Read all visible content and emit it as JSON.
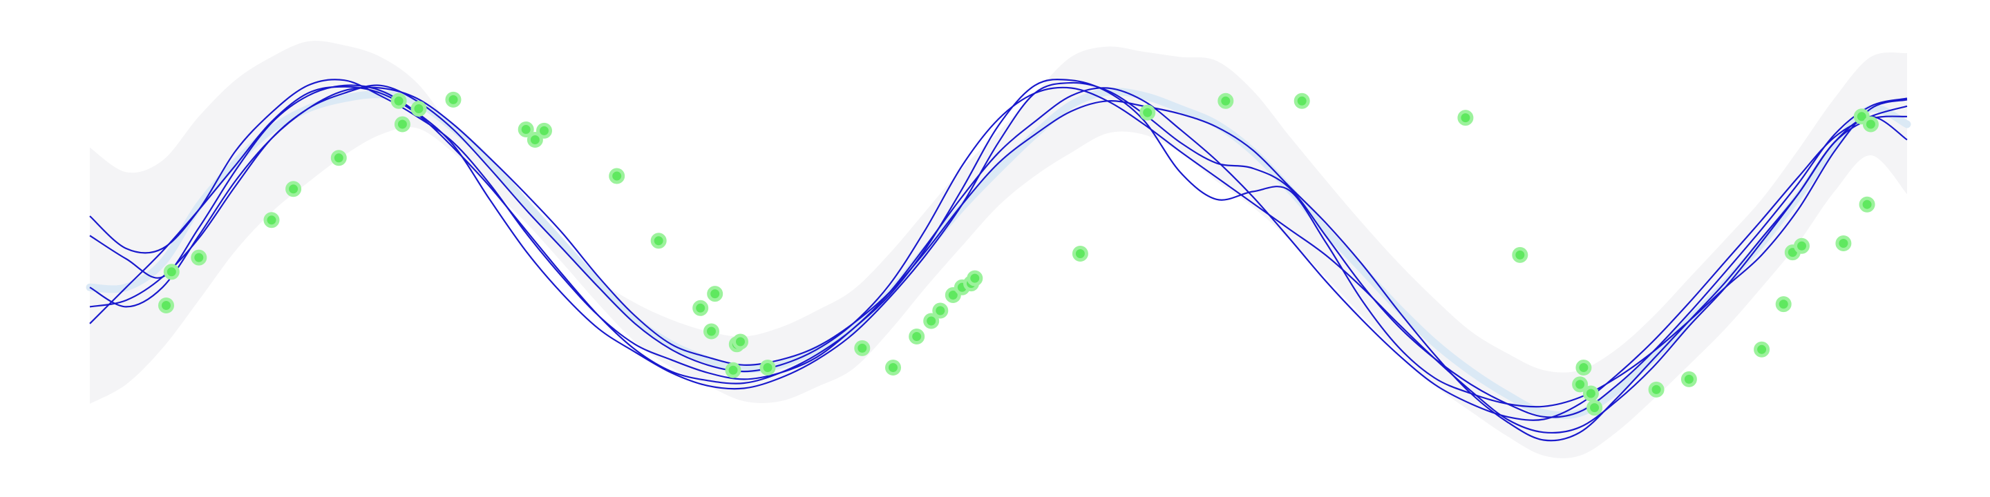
{
  "chart_data": {
    "type": "line",
    "title": "",
    "xlabel": "",
    "ylabel": "",
    "xlim": [
      0,
      1
    ],
    "ylim": [
      -1.6,
      1.6
    ],
    "grid": false,
    "legend": "none",
    "axes_visible": false,
    "colors": {
      "band": "#f4f4f6",
      "mean": "#dbe9f5",
      "samples": "#1919cc",
      "points": "#5fe85f",
      "points_edge": "#9cf29c"
    },
    "x": [
      0,
      0.02,
      0.04,
      0.06,
      0.08,
      0.1,
      0.12,
      0.14,
      0.16,
      0.18,
      0.2,
      0.22,
      0.24,
      0.26,
      0.28,
      0.3,
      0.32,
      0.34,
      0.36,
      0.38,
      0.4,
      0.42,
      0.44,
      0.46,
      0.48,
      0.5,
      0.52,
      0.54,
      0.56,
      0.58,
      0.6,
      0.62,
      0.64,
      0.66,
      0.68,
      0.7,
      0.72,
      0.74,
      0.76,
      0.78,
      0.8,
      0.82,
      0.84,
      0.86,
      0.88,
      0.9,
      0.92,
      0.94,
      0.96,
      0.98,
      1.0
    ],
    "band": {
      "upper": [
        0.78,
        0.59,
        0.68,
        1.02,
        1.3,
        1.48,
        1.6,
        1.57,
        1.48,
        1.28,
        0.92,
        0.63,
        0.35,
        0.04,
        -0.24,
        -0.42,
        -0.55,
        -0.64,
        -0.68,
        -0.61,
        -0.48,
        -0.32,
        -0.04,
        0.29,
        0.62,
        0.9,
        1.2,
        1.48,
        1.56,
        1.52,
        1.48,
        1.45,
        1.22,
        0.87,
        0.53,
        0.2,
        -0.11,
        -0.39,
        -0.64,
        -0.81,
        -0.94,
        -0.94,
        -0.78,
        -0.53,
        -0.23,
        0.07,
        0.38,
        0.76,
        1.16,
        1.48,
        1.51
      ],
      "lower": [
        -1.2,
        -1.05,
        -0.77,
        -0.4,
        -0.02,
        0.28,
        0.51,
        0.72,
        0.88,
        0.93,
        0.74,
        0.47,
        0.2,
        -0.11,
        -0.43,
        -0.72,
        -0.92,
        -1.06,
        -1.18,
        -1.18,
        -1.07,
        -0.93,
        -0.64,
        -0.3,
        0.02,
        0.33,
        0.56,
        0.74,
        0.89,
        0.88,
        0.74,
        0.52,
        0.32,
        0.07,
        -0.22,
        -0.52,
        -0.8,
        -1.06,
        -1.26,
        -1.45,
        -1.6,
        -1.6,
        -1.42,
        -1.17,
        -0.9,
        -0.62,
        -0.3,
        0.04,
        0.44,
        0.72,
        0.42
      ]
    },
    "mean": [
      -0.3,
      -0.3,
      -0.11,
      0.33,
      0.66,
      0.92,
      1.08,
      1.16,
      1.19,
      1.13,
      0.93,
      0.67,
      0.35,
      0.04,
      -0.27,
      -0.55,
      -0.74,
      -0.86,
      -0.93,
      -0.9,
      -0.78,
      -0.62,
      -0.35,
      -0.01,
      0.32,
      0.61,
      0.88,
      1.11,
      1.21,
      1.18,
      1.08,
      0.96,
      0.75,
      0.46,
      0.14,
      -0.16,
      -0.46,
      -0.73,
      -0.95,
      -1.13,
      -1.27,
      -1.27,
      -1.1,
      -0.85,
      -0.56,
      -0.27,
      0.04,
      0.4,
      0.79,
      1.08,
      0.96
    ],
    "series": [
      {
        "values": [
          0.25,
          0.0,
          0.0,
          0.3,
          0.75,
          1.05,
          1.26,
          1.3,
          1.18,
          1.02,
          0.82,
          0.5,
          0.12,
          -0.22,
          -0.52,
          -0.74,
          -0.86,
          -0.96,
          -1.01,
          -0.96,
          -0.84,
          -0.62,
          -0.36,
          0.0,
          0.46,
          0.95,
          1.26,
          1.3,
          1.21,
          0.99,
          0.59,
          0.38,
          0.44,
          0.45,
          0.05,
          -0.4,
          -0.76,
          -1.0,
          -1.12,
          -1.2,
          -1.22,
          -1.15,
          -1.0,
          -0.8,
          -0.56,
          -0.3,
          -0.05,
          0.3,
          0.75,
          1.08,
          1.15
        ]
      },
      {
        "values": [
          0.1,
          -0.08,
          -0.22,
          0.16,
          0.6,
          0.97,
          1.18,
          1.26,
          1.22,
          1.05,
          0.8,
          0.38,
          -0.02,
          -0.35,
          -0.62,
          -0.8,
          -0.96,
          -1.06,
          -1.08,
          -1.0,
          -0.86,
          -0.66,
          -0.38,
          -0.05,
          0.34,
          0.82,
          1.2,
          1.28,
          1.22,
          1.04,
          0.82,
          0.66,
          0.62,
          0.47,
          0.1,
          -0.28,
          -0.6,
          -0.85,
          -1.05,
          -1.2,
          -1.3,
          -1.26,
          -1.06,
          -0.8,
          -0.5,
          -0.18,
          0.15,
          0.5,
          0.88,
          1.1,
          1.16
        ]
      },
      {
        "values": [
          -0.45,
          -0.4,
          -0.22,
          0.08,
          0.48,
          0.85,
          1.08,
          1.2,
          1.26,
          1.14,
          0.92,
          0.62,
          0.3,
          0.0,
          -0.3,
          -0.58,
          -0.78,
          -0.9,
          -0.95,
          -0.9,
          -0.78,
          -0.58,
          -0.28,
          0.15,
          0.64,
          1.0,
          1.2,
          1.24,
          1.14,
          0.96,
          0.75,
          0.55,
          0.35,
          0.15,
          -0.05,
          -0.3,
          -0.58,
          -0.85,
          -1.1,
          -1.32,
          -1.42,
          -1.38,
          -1.18,
          -0.92,
          -0.6,
          -0.3,
          0.05,
          0.42,
          0.82,
          1.0,
          1.02
        ]
      },
      {
        "values": [
          -0.3,
          -0.45,
          -0.3,
          0.1,
          0.52,
          0.85,
          1.08,
          1.22,
          1.24,
          1.16,
          0.96,
          0.7,
          0.42,
          0.12,
          -0.22,
          -0.52,
          -0.74,
          -0.84,
          -0.9,
          -0.86,
          -0.76,
          -0.58,
          -0.34,
          -0.02,
          0.34,
          0.66,
          0.88,
          1.06,
          1.14,
          1.1,
          1.04,
          0.94,
          0.76,
          0.48,
          0.2,
          -0.12,
          -0.48,
          -0.82,
          -1.12,
          -1.34,
          -1.48,
          -1.42,
          -1.16,
          -0.86,
          -0.56,
          -0.26,
          0.08,
          0.42,
          0.82,
          1.02,
          0.84
        ]
      },
      {
        "values": [
          -0.58,
          -0.3,
          -0.02,
          0.3,
          0.64,
          0.98,
          1.2,
          1.25,
          1.2,
          1.04,
          0.78,
          0.48,
          0.14,
          -0.2,
          -0.52,
          -0.78,
          -0.95,
          -1.02,
          -1.04,
          -0.96,
          -0.82,
          -0.62,
          -0.34,
          0.02,
          0.4,
          0.74,
          0.98,
          1.18,
          1.24,
          1.14,
          0.92,
          0.68,
          0.4,
          0.08,
          -0.25,
          -0.55,
          -0.82,
          -1.05,
          -1.2,
          -1.3,
          -1.32,
          -1.2,
          -0.98,
          -0.72,
          -0.42,
          -0.1,
          0.22,
          0.55,
          0.86,
          1.02,
          1.1
        ]
      }
    ],
    "points": {
      "x": [
        0.045,
        0.06,
        0.042,
        0.1,
        0.112,
        0.137,
        0.17,
        0.181,
        0.172,
        0.2,
        0.24,
        0.25,
        0.245,
        0.29,
        0.313,
        0.336,
        0.344,
        0.342,
        0.356,
        0.358,
        0.354,
        0.373,
        0.425,
        0.442,
        0.455,
        0.463,
        0.468,
        0.475,
        0.48,
        0.485,
        0.487,
        0.545,
        0.582,
        0.625,
        0.667,
        0.757,
        0.787,
        0.822,
        0.82,
        0.826,
        0.828,
        0.862,
        0.88,
        0.92,
        0.932,
        0.937,
        0.942,
        0.965,
        0.978,
        0.975,
        0.98
      ],
      "y": [
        -0.18,
        -0.07,
        -0.44,
        0.22,
        0.46,
        0.7,
        1.14,
        1.08,
        0.96,
        1.15,
        0.92,
        0.91,
        0.84,
        0.56,
        0.06,
        -0.46,
        -0.35,
        -0.64,
        -0.74,
        -0.72,
        -0.94,
        -0.92,
        -0.77,
        -0.92,
        -0.68,
        -0.56,
        -0.48,
        -0.36,
        -0.3,
        -0.27,
        -0.23,
        -0.04,
        1.05,
        1.14,
        1.14,
        1.01,
        -0.05,
        -0.92,
        -1.05,
        -1.12,
        -1.23,
        -1.09,
        -1.01,
        -0.78,
        -0.43,
        -0.03,
        0.02,
        0.04,
        0.34,
        1.02,
        0.96
      ]
    }
  }
}
